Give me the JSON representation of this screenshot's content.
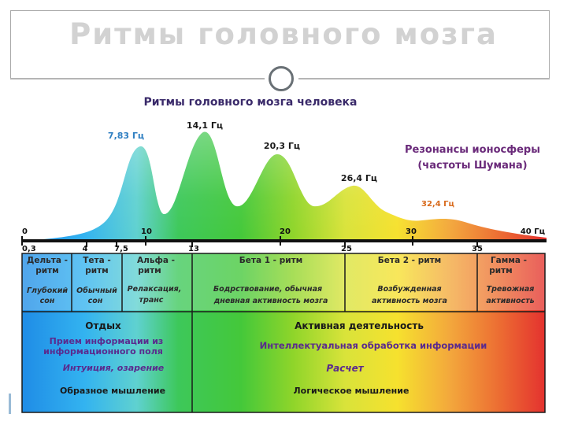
{
  "slide": {
    "title": "Ритмы головного мозга"
  },
  "diagram": {
    "title": "Ритмы головного мозга человека",
    "schumann_title_1": "Резонансы ионосферы",
    "schumann_title_2": "(частоты Шумана)",
    "peaks": [
      {
        "label": "7,83 Гц",
        "color": "#2f7fc2"
      },
      {
        "label": "14,1 Гц",
        "color": "#1a1a1a"
      },
      {
        "label": "20,3 Гц",
        "color": "#1a1a1a"
      },
      {
        "label": "26,4 Гц",
        "color": "#1a1a1a"
      },
      {
        "label": "32,4 Гц",
        "color": "#d86a1c"
      }
    ],
    "scale_top": [
      "0",
      "10",
      "20",
      "30",
      "40 Гц"
    ],
    "scale_bottom": [
      "0,3",
      "4",
      "7,5",
      "13",
      "25",
      "35"
    ],
    "bands": [
      {
        "name_1": "Дельта -",
        "name_2": "ритм",
        "state_1": "Глубокий",
        "state_2": "сон"
      },
      {
        "name_1": "Тета -",
        "name_2": "ритм",
        "state_1": "Обычный",
        "state_2": "сон"
      },
      {
        "name_1": "Альфа -",
        "name_2": "ритм",
        "state_1": "Релаксация,",
        "state_2": "транс"
      },
      {
        "name_1": "Бета 1 - ритм",
        "name_2": "",
        "state_1": "Бодрствование, обычная",
        "state_2": "дневная активность мозга"
      },
      {
        "name_1": "Бета 2 - ритм",
        "name_2": "",
        "state_1": "Возбужденная",
        "state_2": "активность мозга"
      },
      {
        "name_1": "Гамма -",
        "name_2": "ритм",
        "state_1": "Тревожная",
        "state_2": "активность"
      }
    ],
    "left_panel": {
      "heading": "Отдых",
      "line1": "Прием информации из",
      "line2": "информационного поля",
      "line3": "Интуиция, озарение",
      "line4": "Образное мышление"
    },
    "right_panel": {
      "heading": "Активная деятельность",
      "line1": "Интеллектуальная обработка информации",
      "line2": "Расчет",
      "line3": "Логическое мышление"
    },
    "colors": {
      "spectrum": [
        "#1e88e5",
        "#29b6f6",
        "#4dd0a0",
        "#3cc84a",
        "#7ed321",
        "#d4e157",
        "#f5e02a",
        "#f2a23a",
        "#ea5a2e",
        "#e53935"
      ],
      "title_text": "#3a2a6a",
      "purple_text": "#5a2a8e",
      "schumann_text": "#6a2a7a"
    }
  }
}
